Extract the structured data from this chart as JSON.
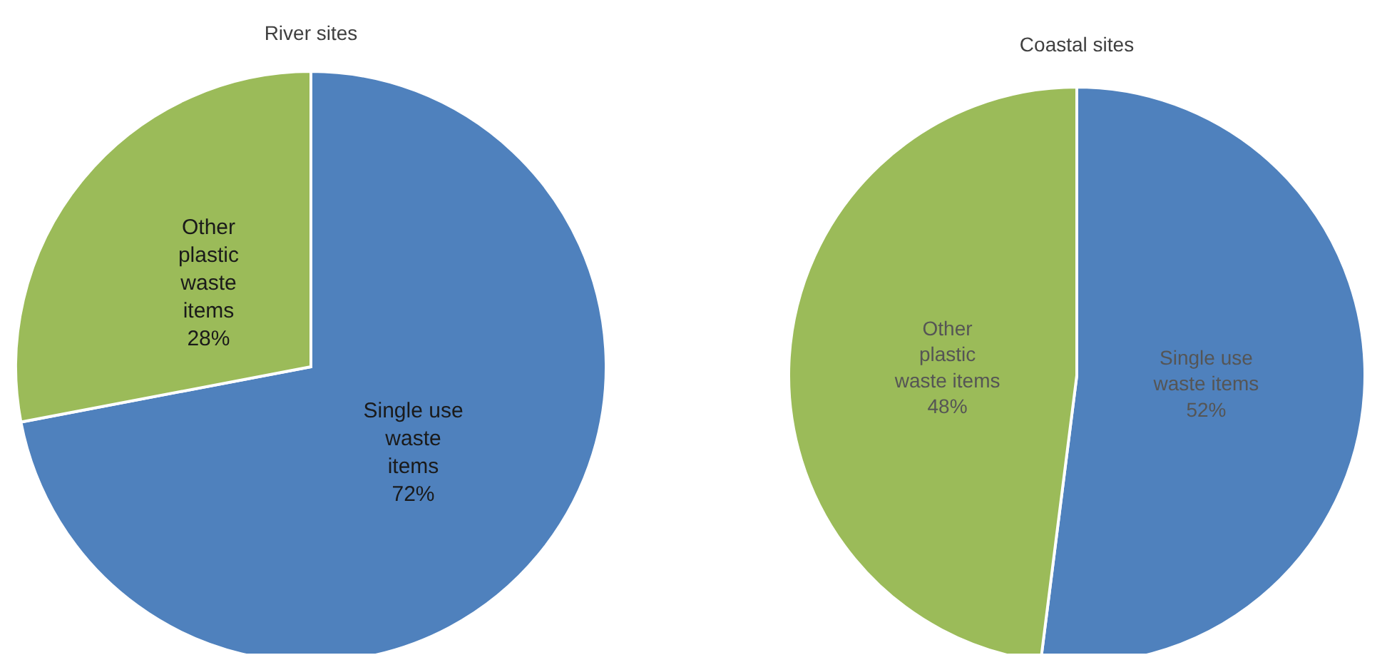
{
  "chart_data": [
    {
      "type": "pie",
      "title": "River sites",
      "categories": [
        "Single use waste items",
        "Other plastic waste items"
      ],
      "values": [
        72,
        28
      ],
      "colors": [
        "#4f81bd",
        "#9bbb59"
      ],
      "value_labels": [
        "72%",
        "28%"
      ]
    },
    {
      "type": "pie",
      "title": "Coastal sites",
      "categories": [
        "Single use waste items",
        "Other plastic waste items"
      ],
      "values": [
        52,
        48
      ],
      "colors": [
        "#4f81bd",
        "#9bbb59"
      ],
      "value_labels": [
        "52%",
        "48%"
      ]
    }
  ]
}
